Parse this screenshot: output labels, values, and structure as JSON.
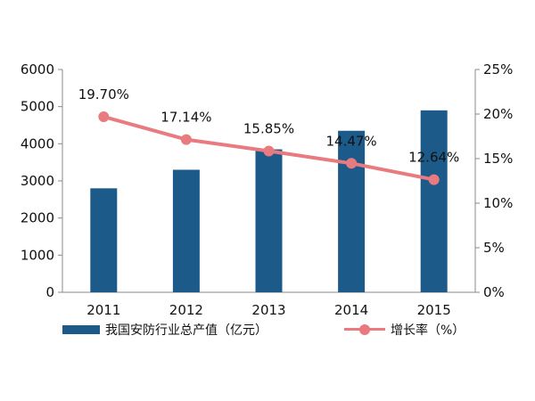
{
  "chart_data": {
    "type": "bar",
    "categories": [
      "2011",
      "2012",
      "2013",
      "2014",
      "2015"
    ],
    "series": [
      {
        "name": "我国安防行业总产值（亿元）",
        "type": "bar",
        "axis": "left",
        "values": [
          2800,
          3300,
          3850,
          4350,
          4900
        ],
        "color": "#1c5a8a"
      },
      {
        "name": "增长率（%）",
        "type": "line",
        "axis": "right",
        "values": [
          19.7,
          17.14,
          15.85,
          14.47,
          12.64
        ],
        "labels": [
          "19.70%",
          "17.14%",
          "15.85%",
          "14.47%",
          "12.64%"
        ],
        "color": "#e87a80"
      }
    ],
    "y_left": {
      "range": [
        0,
        6000
      ],
      "ticks": [
        "0",
        "1000",
        "2000",
        "3000",
        "4000",
        "5000",
        "6000"
      ]
    },
    "y_right": {
      "range": [
        0,
        25
      ],
      "ticks": [
        "0%",
        "5%",
        "10%",
        "15%",
        "20%",
        "25%"
      ]
    },
    "legend_position": "bottom",
    "grid": false
  }
}
